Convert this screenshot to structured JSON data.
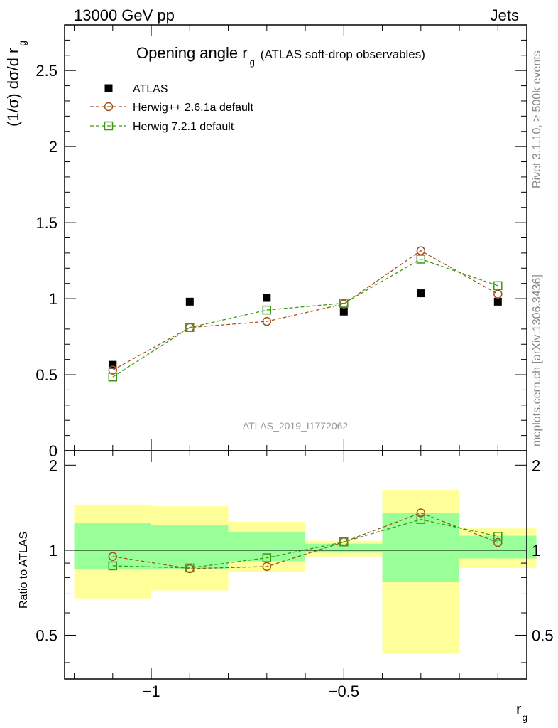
{
  "header": {
    "left": "13000 GeV pp",
    "right": "Jets"
  },
  "title": {
    "main": "Opening angle r",
    "sub": "g",
    "extra": "(ATLAS soft-drop observables)"
  },
  "analysis_id": "ATLAS_2019_I1772062",
  "side_labels": {
    "rivet": "Rivet 3.1.10, ≥ 500k events",
    "mcplots": "mcplots.cern.ch [arXiv:1306.3436]"
  },
  "colors": {
    "atlas": "#000000",
    "herwigpp": "#a0521d",
    "herwig7": "#3a9a14",
    "band_outer": "#ffff99",
    "band_inner": "#99ff99"
  },
  "chart_data": [
    {
      "type": "scatter",
      "panel": "main",
      "ylabel": "(1/σ) dσ/d r",
      "ylabel_sub": "g",
      "xlim": [
        -1.225,
        -0.025
      ],
      "ylim": [
        0,
        2.8
      ],
      "yticks": [
        0,
        0.5,
        1,
        1.5,
        2,
        2.5
      ],
      "ytick_labels": [
        "0",
        "0.5",
        "1",
        "1.5",
        "2",
        "2.5"
      ],
      "x": [
        -1.1,
        -0.9,
        -0.7,
        -0.5,
        -0.3,
        -0.1
      ],
      "series": [
        {
          "name": "ATLAS",
          "key": "atlas",
          "marker": "filled-square",
          "values": [
            0.565,
            0.98,
            1.005,
            0.915,
            1.035,
            0.98
          ]
        },
        {
          "name": "Herwig++ 2.6.1a default",
          "key": "herwigpp",
          "marker": "open-circle",
          "line": "dashed",
          "values": [
            0.53,
            0.81,
            0.85,
            0.965,
            1.315,
            1.03
          ]
        },
        {
          "name": "Herwig 7.2.1 default",
          "key": "herwig7",
          "marker": "open-square",
          "line": "dashed",
          "values": [
            0.485,
            0.81,
            0.925,
            0.97,
            1.26,
            1.085
          ]
        }
      ],
      "legend": "top-left"
    },
    {
      "type": "line",
      "panel": "ratio",
      "ylabel": "Ratio to ATLAS",
      "xlabel": "r",
      "xlabel_sub": "g",
      "xlim": [
        -1.225,
        -0.025
      ],
      "ylim": [
        0.35,
        2.25
      ],
      "yticks": [
        0.5,
        1,
        2
      ],
      "ytick_labels": [
        "0.5",
        "1",
        "2"
      ],
      "xticks": [
        -1,
        -0.5
      ],
      "xtick_labels": [
        "−1",
        "−0.5"
      ],
      "bins": [
        [
          -1.2,
          -1.0
        ],
        [
          -1.0,
          -0.8
        ],
        [
          -0.8,
          -0.6
        ],
        [
          -0.6,
          -0.4
        ],
        [
          -0.4,
          -0.2
        ],
        [
          -0.2,
          -0.0
        ]
      ],
      "band_outer": [
        [
          0.675,
          1.45
        ],
        [
          0.72,
          1.43
        ],
        [
          0.835,
          1.26
        ],
        [
          0.95,
          1.08
        ],
        [
          0.43,
          1.635
        ],
        [
          0.865,
          1.195
        ]
      ],
      "band_inner": [
        [
          0.855,
          1.245
        ],
        [
          0.86,
          1.23
        ],
        [
          0.915,
          1.155
        ],
        [
          0.98,
          1.055
        ],
        [
          0.77,
          1.355
        ],
        [
          0.935,
          1.125
        ]
      ],
      "x": [
        -1.1,
        -0.9,
        -0.7,
        -0.5,
        -0.3,
        -0.1
      ],
      "series": [
        {
          "name": "Herwig++ 2.6.1a default",
          "key": "herwigpp",
          "marker": "open-circle",
          "values": [
            0.95,
            0.86,
            0.875,
            1.07,
            1.355,
            1.065
          ]
        },
        {
          "name": "Herwig 7.2.1 default",
          "key": "herwig7",
          "marker": "open-square",
          "values": [
            0.88,
            0.865,
            0.94,
            1.07,
            1.285,
            1.12
          ]
        }
      ]
    }
  ]
}
